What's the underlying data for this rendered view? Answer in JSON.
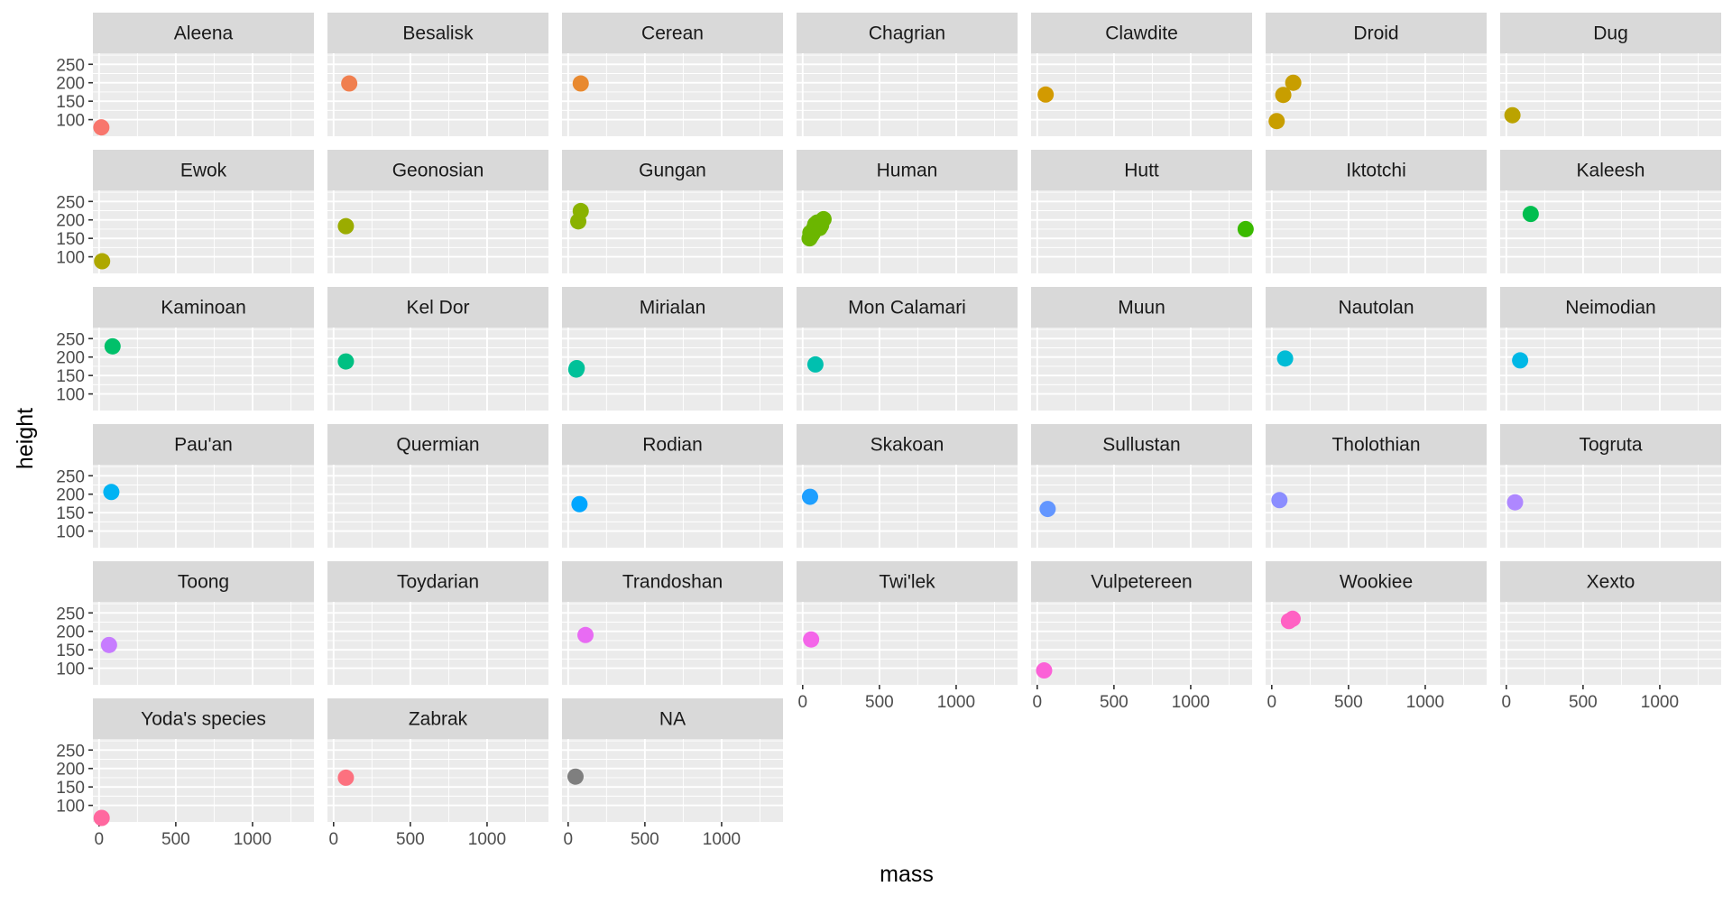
{
  "chart_data": {
    "type": "scatter",
    "facet_by": "species",
    "xlabel": "mass",
    "ylabel": "height",
    "xlim": [
      -40,
      1400
    ],
    "ylim": [
      55,
      280
    ],
    "x_ticks": [
      0,
      500,
      1000
    ],
    "y_ticks": [
      100,
      150,
      200,
      250
    ],
    "grid": true,
    "legend": "none",
    "panels": [
      {
        "name": "Aleena",
        "color": "#F8766D",
        "points": [
          {
            "x": 15,
            "y": 79
          }
        ]
      },
      {
        "name": "Besalisk",
        "color": "#F07F4F",
        "points": [
          {
            "x": 102,
            "y": 198
          }
        ]
      },
      {
        "name": "Cerean",
        "color": "#E8892F",
        "points": [
          {
            "x": 82,
            "y": 198
          }
        ]
      },
      {
        "name": "Chagrian",
        "color": "#DE9400",
        "points": []
      },
      {
        "name": "Clawdite",
        "color": "#D29A00",
        "points": [
          {
            "x": 55,
            "y": 168
          }
        ]
      },
      {
        "name": "Droid",
        "color": "#C89E00",
        "points": [
          {
            "x": 32,
            "y": 96
          },
          {
            "x": 75,
            "y": 167
          },
          {
            "x": 140,
            "y": 200
          }
        ]
      },
      {
        "name": "Dug",
        "color": "#BBA300",
        "points": [
          {
            "x": 40,
            "y": 112
          }
        ]
      },
      {
        "name": "Ewok",
        "color": "#AEA800",
        "points": [
          {
            "x": 20,
            "y": 88
          }
        ]
      },
      {
        "name": "Geonosian",
        "color": "#9BAC00",
        "points": [
          {
            "x": 80,
            "y": 183
          }
        ]
      },
      {
        "name": "Gungan",
        "color": "#8AB200",
        "points": [
          {
            "x": 66,
            "y": 196
          },
          {
            "x": 82,
            "y": 224
          }
        ]
      },
      {
        "name": "Human",
        "color": "#6BB600",
        "points": [
          {
            "x": 45,
            "y": 150
          },
          {
            "x": 50,
            "y": 165
          },
          {
            "x": 55,
            "y": 157
          },
          {
            "x": 65,
            "y": 163
          },
          {
            "x": 75,
            "y": 178
          },
          {
            "x": 77,
            "y": 172
          },
          {
            "x": 80,
            "y": 183
          },
          {
            "x": 82,
            "y": 188
          },
          {
            "x": 84,
            "y": 180
          },
          {
            "x": 90,
            "y": 182
          },
          {
            "x": 95,
            "y": 193
          },
          {
            "x": 110,
            "y": 178
          },
          {
            "x": 120,
            "y": 185
          },
          {
            "x": 136,
            "y": 202
          }
        ]
      },
      {
        "name": "Hutt",
        "color": "#3ABA00",
        "points": [
          {
            "x": 1358,
            "y": 175
          }
        ]
      },
      {
        "name": "Iktotchi",
        "color": "#00BC29",
        "points": []
      },
      {
        "name": "Kaleesh",
        "color": "#00BE4F",
        "points": [
          {
            "x": 159,
            "y": 216
          }
        ]
      },
      {
        "name": "Kaminoan",
        "color": "#00C06A",
        "points": [
          {
            "x": 88,
            "y": 229
          }
        ]
      },
      {
        "name": "Kel Dor",
        "color": "#00C082",
        "points": [
          {
            "x": 80,
            "y": 188
          }
        ]
      },
      {
        "name": "Mirialan",
        "color": "#00C199",
        "points": [
          {
            "x": 53,
            "y": 166
          },
          {
            "x": 56,
            "y": 170
          }
        ]
      },
      {
        "name": "Mon Calamari",
        "color": "#00C0AF",
        "points": [
          {
            "x": 83,
            "y": 180
          }
        ]
      },
      {
        "name": "Muun",
        "color": "#00BEC4",
        "points": []
      },
      {
        "name": "Nautolan",
        "color": "#00BCD6",
        "points": [
          {
            "x": 87,
            "y": 196
          }
        ]
      },
      {
        "name": "Neimodian",
        "color": "#00B8E6",
        "points": [
          {
            "x": 90,
            "y": 191
          }
        ]
      },
      {
        "name": "Pau'an",
        "color": "#00B3F3",
        "points": [
          {
            "x": 80,
            "y": 206
          }
        ]
      },
      {
        "name": "Quermian",
        "color": "#00ACFC",
        "points": []
      },
      {
        "name": "Rodian",
        "color": "#00A6FF",
        "points": [
          {
            "x": 74,
            "y": 173
          }
        ]
      },
      {
        "name": "Skakoan",
        "color": "#1E9FFF",
        "points": [
          {
            "x": 48,
            "y": 193
          }
        ]
      },
      {
        "name": "Sullustan",
        "color": "#6396FF",
        "points": [
          {
            "x": 68,
            "y": 160
          }
        ]
      },
      {
        "name": "Tholothian",
        "color": "#8B8DFF",
        "points": [
          {
            "x": 50,
            "y": 184
          }
        ]
      },
      {
        "name": "Togruta",
        "color": "#AE87FF",
        "points": [
          {
            "x": 57,
            "y": 178
          }
        ]
      },
      {
        "name": "Toong",
        "color": "#C77CFF",
        "points": [
          {
            "x": 65,
            "y": 163
          }
        ]
      },
      {
        "name": "Toydarian",
        "color": "#D973FC",
        "points": []
      },
      {
        "name": "Trandoshan",
        "color": "#E86BF3",
        "points": [
          {
            "x": 113,
            "y": 190
          }
        ]
      },
      {
        "name": "Twi'lek",
        "color": "#F466E9",
        "points": [
          {
            "x": 55,
            "y": 178
          }
        ]
      },
      {
        "name": "Vulpetereen",
        "color": "#FB61D7",
        "points": [
          {
            "x": 45,
            "y": 94
          }
        ]
      },
      {
        "name": "Wookiee",
        "color": "#FF61C3",
        "points": [
          {
            "x": 112,
            "y": 228
          },
          {
            "x": 136,
            "y": 234
          }
        ]
      },
      {
        "name": "Xexto",
        "color": "#FF64B0",
        "points": []
      },
      {
        "name": "Yoda's species",
        "color": "#FF689F",
        "points": [
          {
            "x": 17,
            "y": 66
          }
        ]
      },
      {
        "name": "Zabrak",
        "color": "#FC717F",
        "points": [
          {
            "x": 80,
            "y": 175
          }
        ]
      },
      {
        "name": "NA",
        "color": "#7F7F7F",
        "points": [
          {
            "x": 48,
            "y": 178
          }
        ]
      }
    ]
  }
}
